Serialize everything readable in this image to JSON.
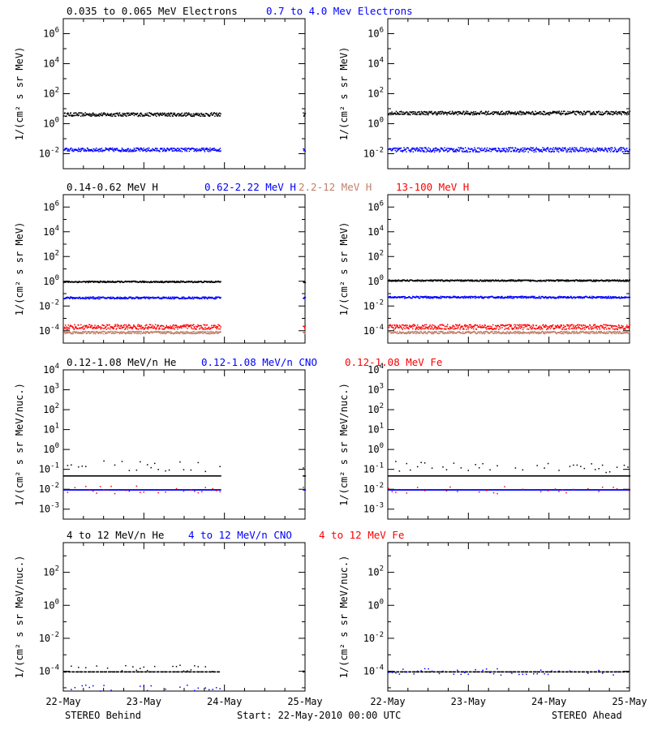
{
  "figure": {
    "footer_left": "STEREO Behind",
    "footer_center": "Start: 22-May-2010 00:00 UTC",
    "footer_right": "STEREO Ahead",
    "x_tick_labels": [
      "22-May",
      "23-May",
      "24-May",
      "25-May"
    ]
  },
  "colors": {
    "black": "#000000",
    "blue": "#0000ff",
    "salmon": "#c0806a",
    "red": "#ff0000"
  },
  "chart_data": [
    {
      "type": "scatter",
      "panel": "electrons-behind",
      "title_parts": [
        {
          "text": "0.035 to 0.065 MeV Electrons",
          "color": "black"
        },
        {
          "text": "0.7 to 4.0 Mev Electrons",
          "color": "blue"
        }
      ],
      "ylabel": "1/(cm2 s sr MeV)",
      "ylog": true,
      "ylim_exp": [
        -3,
        7
      ],
      "yticks_exp": [
        -2,
        0,
        2,
        4,
        6
      ],
      "xlim_days": [
        0,
        3
      ],
      "gaps": [
        [
          1.95,
          2.97
        ]
      ],
      "series": [
        {
          "color": "black",
          "level_exp": 0.65,
          "scatter": 0.12
        },
        {
          "color": "blue",
          "level_exp": -1.7,
          "scatter": 0.12
        }
      ]
    },
    {
      "type": "scatter",
      "panel": "electrons-ahead",
      "title_parts": [],
      "ylabel": "1/(cm2 s sr MeV)",
      "ylog": true,
      "ylim_exp": [
        -3,
        7
      ],
      "yticks_exp": [
        -2,
        0,
        2,
        4,
        6
      ],
      "xlim_days": [
        0,
        3
      ],
      "gaps": [],
      "series": [
        {
          "color": "black",
          "level_exp": 0.75,
          "scatter": 0.12
        },
        {
          "color": "blue",
          "level_exp": -1.7,
          "scatter": 0.15
        }
      ]
    },
    {
      "type": "scatter",
      "panel": "protons-behind",
      "title_parts": [
        {
          "text": "0.14-0.62 MeV H",
          "color": "black"
        },
        {
          "text": "0.62-2.22 MeV H",
          "color": "blue"
        },
        {
          "text": "2.2-12 MeV H",
          "color": "salmon"
        },
        {
          "text": "13-100 MeV H",
          "color": "red"
        }
      ],
      "ylabel": "1/(cm2 s sr MeV)",
      "ylog": true,
      "ylim_exp": [
        -5,
        7
      ],
      "yticks_exp": [
        -4,
        -2,
        0,
        2,
        4,
        6
      ],
      "xlim_days": [
        0,
        3
      ],
      "gaps": [
        [
          1.95,
          2.97
        ]
      ],
      "series": [
        {
          "color": "black",
          "level_exp": 0.0,
          "scatter": 0.06
        },
        {
          "color": "blue",
          "level_exp": -1.3,
          "scatter": 0.08
        },
        {
          "color": "red",
          "level_exp": -3.65,
          "scatter": 0.2
        },
        {
          "color": "salmon",
          "level_exp": -4.1,
          "scatter": 0.1
        }
      ]
    },
    {
      "type": "scatter",
      "panel": "protons-ahead",
      "title_parts": [],
      "ylabel": "1/(cm2 s sr MeV)",
      "ylog": true,
      "ylim_exp": [
        -5,
        7
      ],
      "yticks_exp": [
        -4,
        -2,
        0,
        2,
        4,
        6
      ],
      "xlim_days": [
        0,
        3
      ],
      "gaps": [],
      "series": [
        {
          "color": "black",
          "level_exp": 0.1,
          "scatter": 0.06
        },
        {
          "color": "blue",
          "level_exp": -1.25,
          "scatter": 0.08
        },
        {
          "color": "red",
          "level_exp": -3.65,
          "scatter": 0.2
        },
        {
          "color": "salmon",
          "level_exp": -4.1,
          "scatter": 0.1
        }
      ]
    },
    {
      "type": "scatter",
      "panel": "heavy-low-behind",
      "title_parts": [
        {
          "text": "0.12-1.08 MeV/n He",
          "color": "black"
        },
        {
          "text": "0.12-1.08 MeV/n CNO",
          "color": "blue"
        },
        {
          "text": "0.12-1.08 MeV Fe",
          "color": "red"
        }
      ],
      "ylabel": "1/(cm2 s sr MeV/nuc.)",
      "ylog": true,
      "ylim_exp": [
        -3.5,
        4
      ],
      "yticks_exp": [
        -3,
        -2,
        -1,
        0,
        1,
        2,
        3,
        4
      ],
      "xlim_days": [
        0,
        3
      ],
      "gaps": [
        [
          1.95,
          2.97
        ]
      ],
      "series": [
        {
          "color": "black",
          "level_exp": -1.3,
          "scatter": 0.0
        },
        {
          "color": "black",
          "level_exp": -0.85,
          "scatter": 0.12,
          "sparse": true
        },
        {
          "color": "blue",
          "level_exp": -2.0,
          "scatter": 0.0
        },
        {
          "color": "red",
          "level_exp": -2.0,
          "scatter": 0.0,
          "sparse": true
        }
      ]
    },
    {
      "type": "scatter",
      "panel": "heavy-low-ahead",
      "title_parts": [],
      "ylabel": "1/(cm2 s sr MeV/nuc.)",
      "ylog": true,
      "ylim_exp": [
        -3.5,
        4
      ],
      "yticks_exp": [
        -3,
        -2,
        -1,
        0,
        1,
        2,
        3,
        4
      ],
      "xlim_days": [
        0,
        3
      ],
      "gaps": [],
      "series": [
        {
          "color": "black",
          "level_exp": -1.3,
          "scatter": 0.0
        },
        {
          "color": "black",
          "level_exp": -0.85,
          "scatter": 0.12,
          "sparse": true
        },
        {
          "color": "blue",
          "level_exp": -2.0,
          "scatter": 0.0
        },
        {
          "color": "red",
          "level_exp": -2.0,
          "scatter": 0.0,
          "sparse": true
        }
      ]
    },
    {
      "type": "scatter",
      "panel": "heavy-high-behind",
      "title_parts": [
        {
          "text": "4 to 12 MeV/n He",
          "color": "black"
        },
        {
          "text": "4 to 12 MeV/n CNO",
          "color": "blue"
        },
        {
          "text": "4 to 12 MeV Fe",
          "color": "red"
        }
      ],
      "ylabel": "1/(cm2 s sr MeV/nuc.)",
      "ylog": true,
      "ylim_exp": [
        -5.2,
        3.8
      ],
      "yticks_exp": [
        -4,
        -2,
        0,
        2
      ],
      "xlim_days": [
        0,
        3
      ],
      "gaps": [
        [
          1.95,
          2.97
        ]
      ],
      "series": [
        {
          "color": "black",
          "level_exp": -4.0,
          "scatter": 0.0,
          "dashed": true
        },
        {
          "color": "black",
          "level_exp": -3.8,
          "scatter": 0.0,
          "sparse": true
        },
        {
          "color": "blue",
          "level_exp": -5.0,
          "scatter": 0.0,
          "sparse": true
        }
      ]
    },
    {
      "type": "scatter",
      "panel": "heavy-high-ahead",
      "title_parts": [],
      "ylabel": "1/(cm2 s sr MeV/nuc.)",
      "ylog": true,
      "ylim_exp": [
        -5.2,
        3.8
      ],
      "yticks_exp": [
        -4,
        -2,
        0,
        2
      ],
      "xlim_days": [
        0,
        3
      ],
      "gaps": [],
      "series": [
        {
          "color": "black",
          "level_exp": -4.0,
          "scatter": 0.0,
          "dashed": true
        },
        {
          "color": "blue",
          "level_exp": -4.0,
          "scatter": 0.0,
          "sparse": true
        }
      ]
    }
  ]
}
